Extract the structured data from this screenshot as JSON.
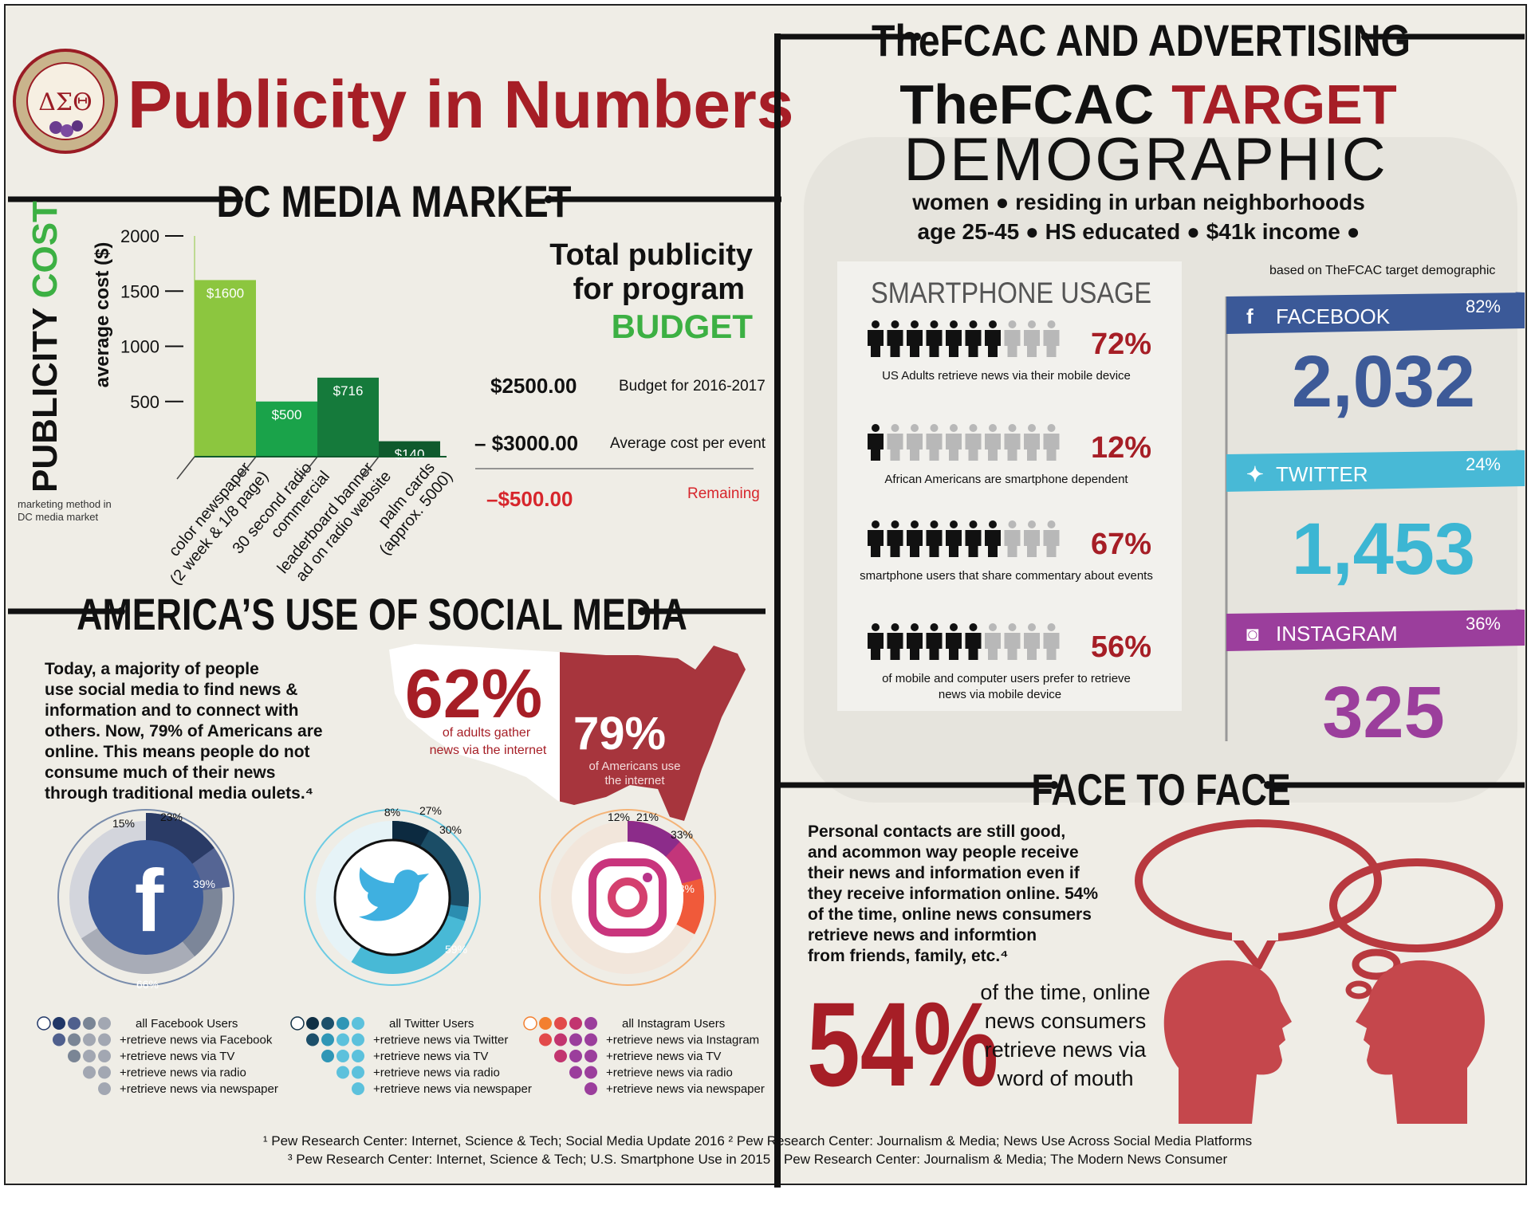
{
  "header": {
    "title": "Publicity in Numbers",
    "logo_text": "ΔΣΘ"
  },
  "dc_market": {
    "heading": "DC MEDIA MARKET",
    "side_label_a": "PUBLICITY ",
    "side_label_b": "COST",
    "ylabel": "average cost ($)",
    "xlabel_note_1": "marketing method in",
    "xlabel_note_2": "DC media market",
    "chart_data": {
      "type": "bar",
      "title": "",
      "ylabel": "average cost ($)",
      "ylim": [
        0,
        2000
      ],
      "yticks": [
        "500",
        "1000",
        "1500",
        "2000"
      ],
      "categories": [
        [
          "color newspaper",
          "(2 week & 1/8 page)"
        ],
        [
          "30 second radio",
          "commercial"
        ],
        [
          "leaderboard banner",
          "ad on radio website"
        ],
        [
          "palm cards",
          "(approx. 5000)"
        ]
      ],
      "values": [
        1600,
        500,
        716,
        140
      ],
      "value_labels": [
        "$1600",
        "$500",
        "$716",
        "$140"
      ],
      "colors": [
        "#8cc63f",
        "#1aa34a",
        "#157a3b",
        "#0f5a2d"
      ]
    },
    "budget": {
      "heading_1": "Total publicity",
      "heading_2": "for program",
      "heading_3": "BUDGET",
      "rows": [
        {
          "amount": "$2500.00",
          "label": "Budget for 2016-2017"
        },
        {
          "amount": "– $3000.00",
          "label": "Average cost per event"
        },
        {
          "amount": "–$500.00",
          "label": "Remaining"
        }
      ]
    }
  },
  "social_media": {
    "heading": "AMERICA’S USE OF SOCIAL MEDIA",
    "paragraph_lines": [
      "Today, a majority of people",
      "use social media to find news &",
      "information and to connect with",
      "others. Now, 79% of Americans are",
      "online. This means people do not",
      "consume much of their news",
      "through traditional media oulets.⁴"
    ],
    "map_stat_1": {
      "value": "62%",
      "line1": "of adults gather",
      "line2": "news via the internet"
    },
    "map_stat_2": {
      "value": "79%",
      "line1": "of Americans use",
      "line2": "the internet"
    },
    "facebook": {
      "pcts": [
        "15%",
        "23%",
        "39%",
        "66%"
      ],
      "legend": [
        "all Facebook Users",
        "+retrieve news via Facebook",
        "+retrieve news via TV",
        "+retrieve news via radio",
        "+retrieve news via newspaper"
      ]
    },
    "twitter": {
      "pcts": [
        "8%",
        "27%",
        "30%",
        "59%"
      ],
      "legend": [
        "all Twitter Users",
        "+retrieve news via Twitter",
        "+retrieve news via TV",
        "+retrieve news via radio",
        "+retrieve news via newspaper"
      ]
    },
    "instagram": {
      "pcts": [
        "12%",
        "21%",
        "33%",
        "23%"
      ],
      "legend": [
        "all Instagram Users",
        "+retrieve news via Instagram",
        "+retrieve news via TV",
        "+retrieve news via radio",
        "+retrieve news via newspaper"
      ]
    }
  },
  "advertising": {
    "heading": "TheFCAC AND ADVERTISING",
    "target_1": "TheFCAC",
    "target_2": "TARGET",
    "target_3": "DEMOGRAPHIC",
    "demo_line_1": "women ● residing in urban neighborhoods",
    "demo_line_2": "age 25-45  ●  HS educated ● $41k income ●",
    "smartphone": {
      "heading": "SMARTPHONE USAGE",
      "rows": [
        {
          "pct": "72%",
          "filled": 7,
          "line1": "US Adults retrieve news via their mobile device",
          "line2": ""
        },
        {
          "pct": "12%",
          "filled": 1,
          "line1": "African Americans are smartphone dependent",
          "line2": ""
        },
        {
          "pct": "67%",
          "filled": 7,
          "line1": "smartphone users that share commentary about events",
          "line2": ""
        },
        {
          "pct": "56%",
          "filled": 6,
          "line1": "of mobile and computer users prefer to retrieve",
          "line2": "news via mobile device"
        }
      ]
    },
    "based_on": "based on TheFCAC target demographic",
    "platforms": [
      {
        "name": "FACEBOOK",
        "icon": "f",
        "pct": "82%",
        "count": "2,032",
        "color": "#3b5998",
        "count_color": "#3d5a98"
      },
      {
        "name": "TWITTER",
        "icon": "t",
        "pct": "24%",
        "count": "1,453",
        "color": "#48b9d6",
        "count_color": "#3cb6d3"
      },
      {
        "name": "INSTAGRAM",
        "icon": "i",
        "pct": "36%",
        "count": "325",
        "color": "#9b3e9c",
        "count_color": "#9b3e9c"
      }
    ]
  },
  "face_to_face": {
    "heading": "FACE TO FACE",
    "paragraph_lines": [
      "Personal contacts are still good,",
      "and acommon way people receive",
      "their news and information even if",
      "they receive information online. 54%",
      "of the time, online news consumers",
      "retrieve news and informtion",
      "from friends, family, etc.⁴"
    ],
    "big_pct": "54%",
    "big_lines": [
      "of the time, online",
      "news consumers",
      "retrieve news via",
      "word of mouth"
    ]
  },
  "footnotes": [
    "¹ Pew Research Center: Internet, Science & Tech; Social Media Update 2016  ² Pew Research Center: Journalism & Media; News Use Across Social Media Platforms",
    "³ Pew Research Center: Internet, Science & Tech; U.S. Smartphone Use in 2015  ⁴ Pew Research Center: Journalism & Media; The Modern News Consumer"
  ]
}
